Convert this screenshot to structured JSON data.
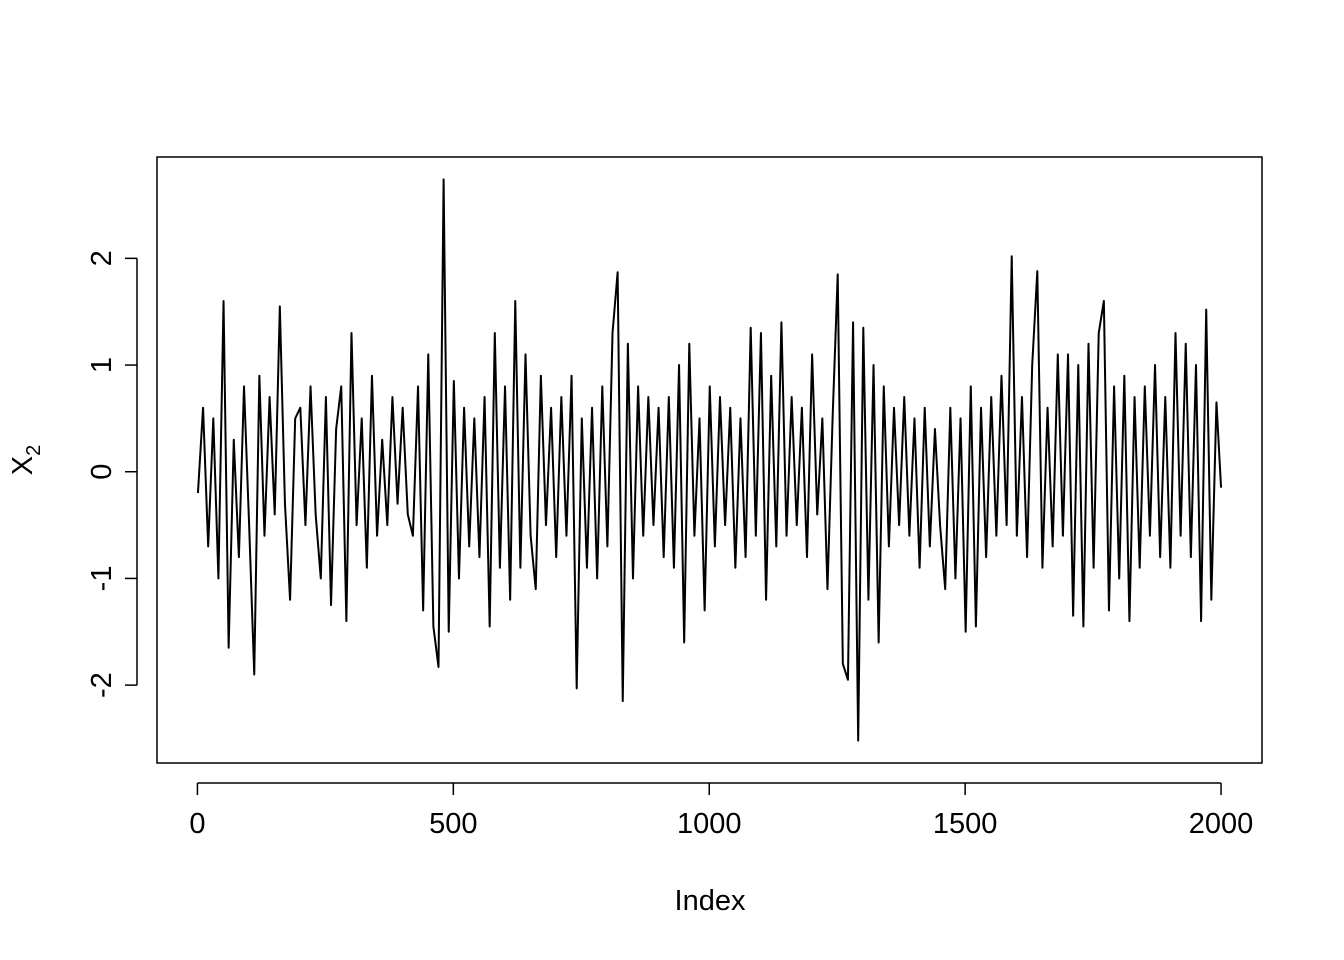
{
  "chart_data": {
    "type": "line",
    "x_label": "Index",
    "y_label": {
      "text": "X",
      "subscript": "2"
    },
    "color": "#000000",
    "xlim": [
      -79,
      2080
    ],
    "xticks": [
      0,
      500,
      1000,
      1500,
      2000
    ],
    "ylim": [
      -2.73,
      2.95
    ],
    "yticks": [
      -2,
      -1,
      0,
      1,
      2
    ],
    "x": [
      1,
      11,
      21,
      31,
      41,
      51,
      61,
      71,
      81,
      91,
      101,
      111,
      121,
      131,
      141,
      151,
      161,
      171,
      181,
      191,
      201,
      211,
      221,
      231,
      241,
      251,
      261,
      271,
      281,
      291,
      301,
      311,
      321,
      331,
      341,
      351,
      361,
      371,
      381,
      391,
      401,
      411,
      421,
      431,
      441,
      451,
      461,
      471,
      481,
      491,
      501,
      511,
      521,
      531,
      541,
      551,
      561,
      571,
      581,
      591,
      601,
      611,
      621,
      631,
      641,
      651,
      661,
      671,
      681,
      691,
      701,
      711,
      721,
      731,
      741,
      751,
      761,
      771,
      781,
      791,
      801,
      811,
      821,
      831,
      841,
      851,
      861,
      871,
      881,
      891,
      901,
      911,
      921,
      931,
      941,
      951,
      961,
      971,
      981,
      991,
      1001,
      1011,
      1021,
      1031,
      1041,
      1051,
      1061,
      1071,
      1081,
      1091,
      1101,
      1111,
      1121,
      1131,
      1141,
      1151,
      1161,
      1171,
      1181,
      1191,
      1201,
      1211,
      1221,
      1231,
      1241,
      1251,
      1261,
      1271,
      1281,
      1291,
      1301,
      1311,
      1321,
      1331,
      1341,
      1351,
      1361,
      1371,
      1381,
      1391,
      1401,
      1411,
      1421,
      1431,
      1441,
      1451,
      1461,
      1471,
      1481,
      1491,
      1501,
      1511,
      1521,
      1531,
      1541,
      1551,
      1561,
      1571,
      1581,
      1591,
      1601,
      1611,
      1621,
      1631,
      1641,
      1651,
      1661,
      1671,
      1681,
      1691,
      1701,
      1711,
      1721,
      1731,
      1741,
      1751,
      1761,
      1771,
      1781,
      1791,
      1801,
      1811,
      1821,
      1831,
      1841,
      1851,
      1861,
      1871,
      1881,
      1891,
      1901,
      1911,
      1921,
      1931,
      1941,
      1951,
      1961,
      1971,
      1981,
      1991,
      2000
    ],
    "values": [
      -0.2,
      0.6,
      -0.7,
      0.5,
      -1.0,
      1.6,
      -1.65,
      0.3,
      -0.8,
      0.8,
      -0.5,
      -1.9,
      0.9,
      -0.6,
      0.7,
      -0.4,
      1.55,
      -0.3,
      -1.2,
      0.5,
      0.6,
      -0.5,
      0.8,
      -0.4,
      -1.0,
      0.7,
      -1.25,
      0.4,
      0.8,
      -1.4,
      1.3,
      -0.5,
      0.5,
      -0.9,
      0.9,
      -0.6,
      0.3,
      -0.5,
      0.7,
      -0.3,
      0.6,
      -0.4,
      -0.6,
      0.8,
      -1.3,
      1.1,
      -1.45,
      -1.83,
      2.74,
      -1.5,
      0.85,
      -1.0,
      0.6,
      -0.7,
      0.5,
      -0.8,
      0.7,
      -1.45,
      1.3,
      -0.9,
      0.8,
      -1.2,
      1.6,
      -0.9,
      1.1,
      -0.6,
      -1.1,
      0.9,
      -0.5,
      0.6,
      -0.8,
      0.7,
      -0.6,
      0.9,
      -2.03,
      0.5,
      -0.9,
      0.6,
      -1.0,
      0.8,
      -0.7,
      1.3,
      1.87,
      -2.15,
      1.2,
      -1.0,
      0.8,
      -0.6,
      0.7,
      -0.5,
      0.6,
      -0.8,
      0.7,
      -0.9,
      1.0,
      -1.6,
      1.2,
      -0.6,
      0.5,
      -1.3,
      0.8,
      -0.7,
      0.7,
      -0.5,
      0.6,
      -0.9,
      0.5,
      -0.8,
      1.35,
      -0.6,
      1.3,
      -1.2,
      0.9,
      -0.7,
      1.4,
      -0.6,
      0.7,
      -0.5,
      0.6,
      -0.8,
      1.1,
      -0.4,
      0.5,
      -1.1,
      0.5,
      1.85,
      -1.8,
      -1.95,
      1.4,
      -2.52,
      1.35,
      -1.2,
      1.0,
      -1.6,
      0.8,
      -0.7,
      0.6,
      -0.5,
      0.7,
      -0.6,
      0.5,
      -0.9,
      0.6,
      -0.7,
      0.4,
      -0.5,
      -1.1,
      0.6,
      -1.0,
      0.5,
      -1.5,
      0.8,
      -1.45,
      0.6,
      -0.8,
      0.7,
      -0.6,
      0.9,
      -0.5,
      2.02,
      -0.6,
      0.7,
      -0.8,
      1.0,
      1.88,
      -0.9,
      0.6,
      -0.7,
      1.1,
      -0.6,
      1.1,
      -1.35,
      1.0,
      -1.45,
      1.2,
      -0.9,
      1.3,
      1.6,
      -1.3,
      0.8,
      -1.0,
      0.9,
      -1.4,
      0.7,
      -0.9,
      0.8,
      -0.6,
      1.0,
      -0.8,
      0.7,
      -0.9,
      1.3,
      -0.6,
      1.2,
      -0.8,
      1.0,
      -1.4,
      1.52,
      -1.2,
      0.65,
      -0.15
    ]
  }
}
